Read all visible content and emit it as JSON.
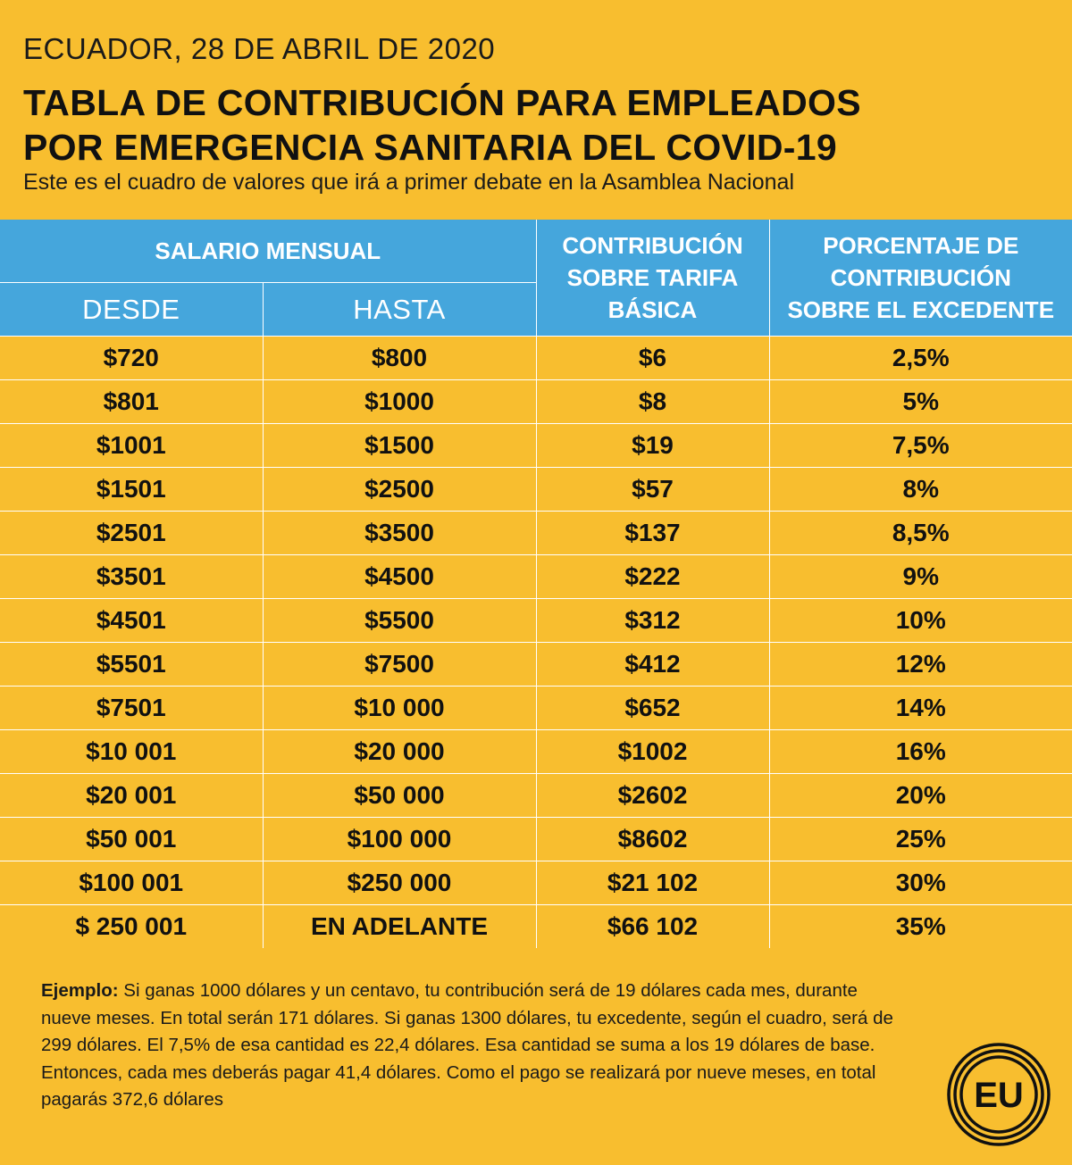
{
  "header": {
    "dateline": "ECUADOR, 28 DE ABRIL DE 2020",
    "title_line1": "TABLA DE CONTRIBUCIÓN PARA EMPLEADOS",
    "title_line2": "POR EMERGENCIA SANITARIA DEL COVID-19",
    "subtitle": "Este es el cuadro de valores que irá a primer debate en la Asamblea Nacional"
  },
  "table": {
    "headers": {
      "salario": "SALARIO MENSUAL",
      "desde": "DESDE",
      "hasta": "HASTA",
      "contribucion": [
        "CONTRIBUCIÓN",
        "SOBRE TARIFA",
        "BÁSICA"
      ],
      "porcentaje": [
        "PORCENTAJE DE",
        "CONTRIBUCIÓN",
        "SOBRE EL EXCEDENTE"
      ]
    },
    "rows": [
      {
        "desde": "$720",
        "hasta": "$800",
        "contribucion": "$6",
        "porcentaje": "2,5%"
      },
      {
        "desde": "$801",
        "hasta": "$1000",
        "contribucion": "$8",
        "porcentaje": "5%"
      },
      {
        "desde": "$1001",
        "hasta": "$1500",
        "contribucion": "$19",
        "porcentaje": "7,5%"
      },
      {
        "desde": "$1501",
        "hasta": "$2500",
        "contribucion": "$57",
        "porcentaje": "8%"
      },
      {
        "desde": "$2501",
        "hasta": "$3500",
        "contribucion": "$137",
        "porcentaje": "8,5%"
      },
      {
        "desde": "$3501",
        "hasta": "$4500",
        "contribucion": "$222",
        "porcentaje": "9%"
      },
      {
        "desde": "$4501",
        "hasta": "$5500",
        "contribucion": "$312",
        "porcentaje": "10%"
      },
      {
        "desde": "$5501",
        "hasta": "$7500",
        "contribucion": "$412",
        "porcentaje": "12%"
      },
      {
        "desde": "$7501",
        "hasta": "$10 000",
        "contribucion": "$652",
        "porcentaje": "14%"
      },
      {
        "desde": "$10 001",
        "hasta": "$20 000",
        "contribucion": "$1002",
        "porcentaje": "16%"
      },
      {
        "desde": "$20 001",
        "hasta": "$50 000",
        "contribucion": "$2602",
        "porcentaje": "20%"
      },
      {
        "desde": "$50 001",
        "hasta": "$100 000",
        "contribucion": "$8602",
        "porcentaje": "25%"
      },
      {
        "desde": "$100 001",
        "hasta": "$250 000",
        "contribucion": "$21 102",
        "porcentaje": "30%"
      },
      {
        "desde": "$ 250 001",
        "hasta": "EN ADELANTE",
        "contribucion": "$66 102",
        "porcentaje": "35%"
      }
    ]
  },
  "example": {
    "label": "Ejemplo:",
    "text": " Si ganas 1000 dólares y un centavo, tu contribución será de 19 dólares cada mes, durante nueve meses. En total serán 171 dólares. Si ganas 1300 dólares, tu excedente, según el cuadro, será de 299 dólares. El 7,5% de esa cantidad es 22,4 dólares. Esa cantidad se suma a los 19 dólares de base. Entonces, cada mes deberás pagar 41,4 dólares. Como el pago se realizará por nueve meses, en total pagarás 372,6 dólares"
  },
  "logo": {
    "text": "EU",
    "icon": "eu-logo-icon"
  },
  "colors": {
    "background": "#f8be2f",
    "header_blue": "#45a6dc",
    "text": "#111111"
  }
}
